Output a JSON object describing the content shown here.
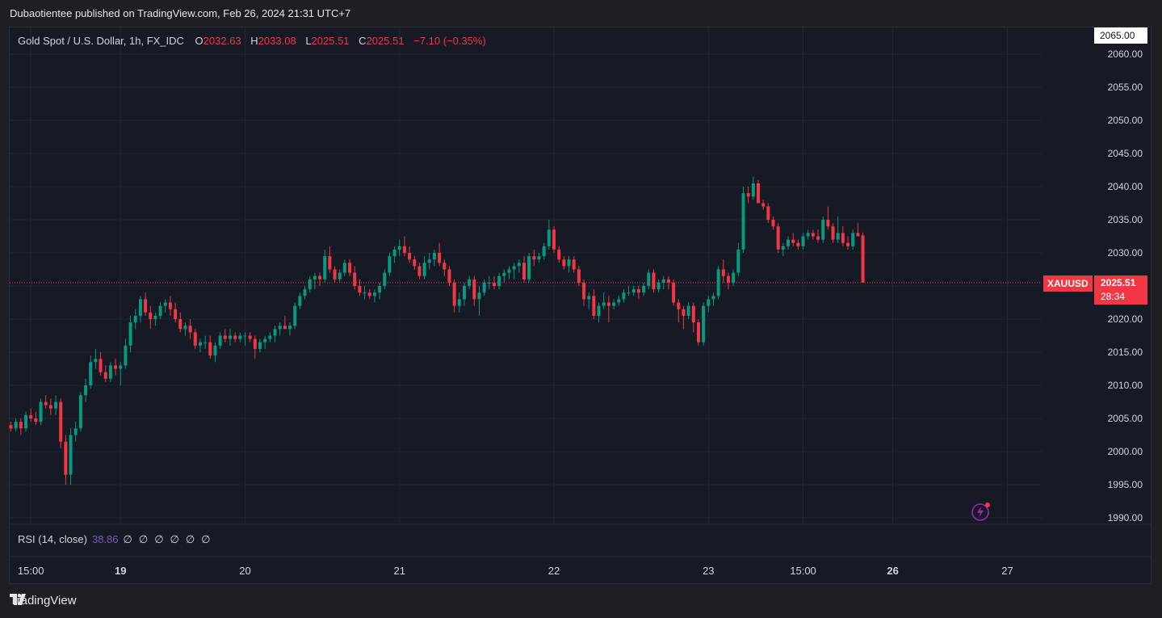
{
  "header": {
    "published": "Dubaotientee published on TradingView.com, Feb 26, 2024 21:31 UTC+7"
  },
  "legend": {
    "symbol": "Gold Spot / U.S. Dollar, 1h, FX_IDC",
    "o_label": "O",
    "o": "2032.63",
    "h_label": "H",
    "h": "2033.08",
    "l_label": "L",
    "l": "2025.51",
    "c_label": "C",
    "c": "2025.51",
    "change": "−7.10 (−0.35%)"
  },
  "price_label": {
    "ticker": "XAUUSD",
    "price": "2025.51",
    "countdown": "28:34",
    "top": "2065.00"
  },
  "rsi": {
    "label": "RSI (14, close)",
    "value": "38.86",
    "placeholders": [
      "∅",
      "∅",
      "∅",
      "∅",
      "∅",
      "∅"
    ]
  },
  "footer": {
    "brand": "TradingView"
  },
  "colors": {
    "up": "#089981",
    "down": "#f23645",
    "bg": "#161a25",
    "grid": "#232733",
    "text": "#d1d4dc"
  },
  "chart_data": {
    "type": "candlestick",
    "ylim": [
      1990,
      2065
    ],
    "y_ticks": [
      "2060.00",
      "2055.00",
      "2050.00",
      "2045.00",
      "2040.00",
      "2035.00",
      "2030.00",
      "2025.00",
      "2020.00",
      "2015.00",
      "2010.00",
      "2005.00",
      "2000.00",
      "1995.00",
      "1990.00"
    ],
    "x_ticks": [
      {
        "label": "15:00",
        "bold": false,
        "bar": 4
      },
      {
        "label": "19",
        "bold": true,
        "bar": 22
      },
      {
        "label": "20",
        "bold": false,
        "bar": 47
      },
      {
        "label": "21",
        "bold": false,
        "bar": 78
      },
      {
        "label": "22",
        "bold": false,
        "bar": 109
      },
      {
        "label": "23",
        "bold": false,
        "bar": 140
      },
      {
        "label": "15:00",
        "bold": false,
        "bar": 159
      },
      {
        "label": "26",
        "bold": true,
        "bar": 177
      },
      {
        "label": "27",
        "bold": false,
        "bar": 200
      }
    ],
    "last_price": 2025.51,
    "candles": [
      [
        2004.0,
        2004.5,
        2003.0,
        2003.5
      ],
      [
        2003.5,
        2005.0,
        2003.0,
        2004.5
      ],
      [
        2004.5,
        2005.0,
        2002.5,
        2003.5
      ],
      [
        2003.5,
        2006.0,
        2003.0,
        2005.5
      ],
      [
        2005.5,
        2006.5,
        2004.5,
        2005.0
      ],
      [
        2005.0,
        2006.0,
        2004.0,
        2004.5
      ],
      [
        2004.5,
        2008.0,
        2004.0,
        2007.5
      ],
      [
        2007.5,
        2008.5,
        2006.5,
        2007.0
      ],
      [
        2007.0,
        2008.0,
        2005.5,
        2006.5
      ],
      [
        2006.5,
        2008.5,
        2005.5,
        2007.5
      ],
      [
        2007.5,
        2008.0,
        2000.5,
        2001.5
      ],
      [
        2001.5,
        2002.5,
        1995.0,
        1996.5
      ],
      [
        1996.5,
        2003.5,
        1995.0,
        2002.5
      ],
      [
        2002.5,
        2004.5,
        2001.5,
        2003.5
      ],
      [
        2003.5,
        2009.0,
        2003.0,
        2008.5
      ],
      [
        2008.5,
        2011.0,
        2007.5,
        2010.0
      ],
      [
        2010.0,
        2014.5,
        2009.5,
        2013.5
      ],
      [
        2013.5,
        2015.5,
        2012.5,
        2014.0
      ],
      [
        2014.0,
        2015.0,
        2011.5,
        2012.0
      ],
      [
        2012.0,
        2013.0,
        2010.5,
        2011.0
      ],
      [
        2011.0,
        2013.5,
        2010.5,
        2013.0
      ],
      [
        2013.0,
        2014.0,
        2011.5,
        2012.5
      ],
      [
        2012.5,
        2013.5,
        2010.0,
        2013.0
      ],
      [
        2013.0,
        2017.0,
        2012.5,
        2016.0
      ],
      [
        2016.0,
        2020.5,
        2015.0,
        2019.5
      ],
      [
        2019.5,
        2021.5,
        2018.5,
        2020.5
      ],
      [
        2020.5,
        2023.5,
        2019.5,
        2023.0
      ],
      [
        2023.0,
        2024.0,
        2020.5,
        2021.0
      ],
      [
        2021.0,
        2022.0,
        2018.5,
        2020.0
      ],
      [
        2020.0,
        2021.0,
        2019.0,
        2020.5
      ],
      [
        2020.5,
        2022.5,
        2020.0,
        2022.0
      ],
      [
        2022.0,
        2023.0,
        2021.0,
        2022.5
      ],
      [
        2022.5,
        2023.5,
        2020.5,
        2021.5
      ],
      [
        2021.5,
        2022.5,
        2019.5,
        2020.0
      ],
      [
        2020.0,
        2021.0,
        2018.0,
        2018.5
      ],
      [
        2018.5,
        2019.5,
        2017.5,
        2019.0
      ],
      [
        2019.0,
        2020.0,
        2017.0,
        2018.0
      ],
      [
        2018.0,
        2018.5,
        2015.5,
        2016.0
      ],
      [
        2016.0,
        2017.0,
        2015.0,
        2016.5
      ],
      [
        2016.5,
        2017.5,
        2015.5,
        2016.5
      ],
      [
        2016.5,
        2017.5,
        2014.0,
        2014.5
      ],
      [
        2014.5,
        2016.5,
        2013.5,
        2016.0
      ],
      [
        2016.0,
        2018.0,
        2015.5,
        2017.5
      ],
      [
        2017.5,
        2018.5,
        2016.5,
        2017.0
      ],
      [
        2017.0,
        2018.5,
        2016.0,
        2017.5
      ],
      [
        2017.5,
        2018.0,
        2016.5,
        2017.0
      ],
      [
        2017.0,
        2018.0,
        2016.5,
        2017.5
      ],
      [
        2017.5,
        2018.0,
        2016.0,
        2017.5
      ],
      [
        2017.5,
        2018.0,
        2016.5,
        2017.0
      ],
      [
        2017.0,
        2017.5,
        2014.0,
        2015.5
      ],
      [
        2015.5,
        2017.0,
        2015.0,
        2016.5
      ],
      [
        2016.5,
        2017.5,
        2015.5,
        2017.0
      ],
      [
        2017.0,
        2018.0,
        2016.5,
        2017.5
      ],
      [
        2017.5,
        2019.0,
        2016.5,
        2018.5
      ],
      [
        2018.5,
        2019.5,
        2017.5,
        2019.0
      ],
      [
        2019.0,
        2020.5,
        2018.5,
        2018.5
      ],
      [
        2018.5,
        2019.5,
        2017.5,
        2019.0
      ],
      [
        2019.0,
        2022.5,
        2018.5,
        2022.0
      ],
      [
        2022.0,
        2024.0,
        2021.5,
        2023.5
      ],
      [
        2023.5,
        2025.0,
        2023.0,
        2024.5
      ],
      [
        2024.5,
        2026.5,
        2024.0,
        2026.0
      ],
      [
        2026.0,
        2027.0,
        2024.5,
        2026.5
      ],
      [
        2026.5,
        2027.0,
        2025.0,
        2026.0
      ],
      [
        2026.0,
        2030.5,
        2025.5,
        2029.5
      ],
      [
        2029.5,
        2031.0,
        2027.0,
        2027.5
      ],
      [
        2027.5,
        2028.0,
        2025.5,
        2026.0
      ],
      [
        2026.0,
        2027.5,
        2025.5,
        2027.0
      ],
      [
        2027.0,
        2029.0,
        2026.5,
        2028.5
      ],
      [
        2028.5,
        2029.0,
        2026.5,
        2027.0
      ],
      [
        2027.0,
        2028.0,
        2024.5,
        2025.0
      ],
      [
        2025.0,
        2026.0,
        2023.5,
        2024.0
      ],
      [
        2024.0,
        2025.0,
        2023.0,
        2024.0
      ],
      [
        2024.0,
        2024.5,
        2023.0,
        2023.5
      ],
      [
        2023.5,
        2024.5,
        2022.5,
        2024.0
      ],
      [
        2024.0,
        2025.5,
        2023.0,
        2025.0
      ],
      [
        2025.0,
        2027.5,
        2024.5,
        2027.0
      ],
      [
        2027.0,
        2030.0,
        2026.5,
        2029.5
      ],
      [
        2029.5,
        2031.0,
        2028.5,
        2030.5
      ],
      [
        2030.5,
        2032.0,
        2029.5,
        2031.0
      ],
      [
        2031.0,
        2032.5,
        2029.5,
        2030.0
      ],
      [
        2030.0,
        2031.0,
        2028.5,
        2029.0
      ],
      [
        2029.0,
        2029.5,
        2027.5,
        2028.0
      ],
      [
        2028.0,
        2028.5,
        2026.0,
        2026.5
      ],
      [
        2026.5,
        2029.5,
        2026.0,
        2028.5
      ],
      [
        2028.5,
        2030.0,
        2027.5,
        2029.0
      ],
      [
        2029.0,
        2030.5,
        2028.0,
        2030.0
      ],
      [
        2030.0,
        2031.5,
        2028.0,
        2028.5
      ],
      [
        2028.5,
        2029.0,
        2026.5,
        2027.5
      ],
      [
        2027.5,
        2028.0,
        2025.0,
        2025.5
      ],
      [
        2025.5,
        2026.0,
        2021.0,
        2022.0
      ],
      [
        2022.0,
        2024.0,
        2021.0,
        2023.0
      ],
      [
        2023.0,
        2025.5,
        2022.0,
        2025.0
      ],
      [
        2025.0,
        2026.5,
        2024.5,
        2026.0
      ],
      [
        2026.0,
        2026.5,
        2022.0,
        2023.0
      ],
      [
        2023.0,
        2025.0,
        2020.5,
        2024.0
      ],
      [
        2024.0,
        2026.0,
        2023.5,
        2025.5
      ],
      [
        2025.5,
        2026.5,
        2024.5,
        2025.5
      ],
      [
        2025.5,
        2026.5,
        2024.5,
        2025.0
      ],
      [
        2025.0,
        2027.0,
        2024.5,
        2026.5
      ],
      [
        2026.5,
        2027.5,
        2025.5,
        2027.0
      ],
      [
        2027.0,
        2028.0,
        2026.0,
        2027.5
      ],
      [
        2027.5,
        2028.5,
        2026.0,
        2028.0
      ],
      [
        2028.0,
        2029.0,
        2027.0,
        2028.5
      ],
      [
        2028.5,
        2029.5,
        2025.5,
        2026.0
      ],
      [
        2026.0,
        2030.0,
        2025.5,
        2029.5
      ],
      [
        2029.5,
        2030.5,
        2028.0,
        2029.0
      ],
      [
        2029.0,
        2030.0,
        2028.5,
        2029.5
      ],
      [
        2029.5,
        2031.5,
        2029.0,
        2031.0
      ],
      [
        2031.0,
        2035.0,
        2030.5,
        2033.5
      ],
      [
        2033.5,
        2034.0,
        2030.0,
        2030.5
      ],
      [
        2030.5,
        2031.0,
        2028.5,
        2029.0
      ],
      [
        2029.0,
        2029.5,
        2027.5,
        2028.0
      ],
      [
        2028.0,
        2029.5,
        2027.0,
        2029.0
      ],
      [
        2029.0,
        2029.5,
        2027.0,
        2027.5
      ],
      [
        2027.5,
        2028.0,
        2025.0,
        2025.5
      ],
      [
        2025.5,
        2026.0,
        2022.0,
        2023.0
      ],
      [
        2023.0,
        2024.0,
        2021.5,
        2023.5
      ],
      [
        2023.5,
        2024.5,
        2020.0,
        2020.5
      ],
      [
        2020.5,
        2022.5,
        2019.5,
        2022.0
      ],
      [
        2022.0,
        2024.0,
        2021.5,
        2022.5
      ],
      [
        2022.5,
        2023.5,
        2019.5,
        2022.0
      ],
      [
        2022.0,
        2023.0,
        2021.5,
        2022.5
      ],
      [
        2022.5,
        2023.5,
        2022.0,
        2023.0
      ],
      [
        2023.0,
        2024.5,
        2022.5,
        2024.0
      ],
      [
        2024.0,
        2025.0,
        2023.5,
        2024.0
      ],
      [
        2024.0,
        2025.0,
        2023.5,
        2024.5
      ],
      [
        2024.5,
        2025.0,
        2023.0,
        2024.0
      ],
      [
        2024.0,
        2025.5,
        2023.5,
        2025.0
      ],
      [
        2025.0,
        2027.5,
        2024.5,
        2027.0
      ],
      [
        2027.0,
        2027.5,
        2024.0,
        2024.5
      ],
      [
        2024.5,
        2026.0,
        2024.0,
        2025.5
      ],
      [
        2025.5,
        2026.5,
        2024.5,
        2026.0
      ],
      [
        2026.0,
        2026.5,
        2024.5,
        2025.5
      ],
      [
        2025.5,
        2026.0,
        2022.0,
        2022.5
      ],
      [
        2022.5,
        2023.0,
        2019.5,
        2021.5
      ],
      [
        2021.5,
        2022.0,
        2018.5,
        2020.5
      ],
      [
        2020.5,
        2022.5,
        2020.0,
        2022.0
      ],
      [
        2022.0,
        2022.5,
        2018.0,
        2019.5
      ],
      [
        2019.5,
        2020.0,
        2016.0,
        2016.5
      ],
      [
        2016.5,
        2022.5,
        2016.0,
        2022.0
      ],
      [
        2022.0,
        2023.5,
        2021.0,
        2023.0
      ],
      [
        2023.0,
        2024.0,
        2022.0,
        2023.5
      ],
      [
        2023.5,
        2028.0,
        2023.0,
        2027.5
      ],
      [
        2027.5,
        2029.0,
        2025.5,
        2026.5
      ],
      [
        2026.5,
        2027.0,
        2024.5,
        2025.5
      ],
      [
        2025.5,
        2027.5,
        2025.0,
        2027.0
      ],
      [
        2027.0,
        2031.5,
        2026.5,
        2030.5
      ],
      [
        2030.5,
        2040.0,
        2030.0,
        2039.0
      ],
      [
        2039.0,
        2040.0,
        2037.5,
        2038.5
      ],
      [
        2038.5,
        2041.5,
        2038.0,
        2040.5
      ],
      [
        2040.5,
        2041.0,
        2037.5,
        2037.5
      ],
      [
        2037.5,
        2038.0,
        2036.5,
        2037.0
      ],
      [
        2037.0,
        2037.5,
        2034.5,
        2035.0
      ],
      [
        2035.0,
        2035.5,
        2033.5,
        2034.0
      ],
      [
        2034.0,
        2034.5,
        2030.0,
        2030.5
      ],
      [
        2030.5,
        2031.5,
        2029.5,
        2031.0
      ],
      [
        2031.0,
        2032.5,
        2030.5,
        2032.0
      ],
      [
        2032.0,
        2033.0,
        2031.0,
        2031.5
      ],
      [
        2031.5,
        2032.0,
        2030.5,
        2031.0
      ],
      [
        2031.0,
        2033.0,
        2030.5,
        2032.5
      ],
      [
        2032.5,
        2033.5,
        2032.0,
        2033.0
      ],
      [
        2033.0,
        2033.5,
        2032.0,
        2032.5
      ],
      [
        2032.5,
        2033.5,
        2031.5,
        2032.0
      ],
      [
        2032.0,
        2035.5,
        2031.5,
        2035.0
      ],
      [
        2035.0,
        2037.0,
        2033.5,
        2034.0
      ],
      [
        2034.0,
        2034.5,
        2031.5,
        2032.0
      ],
      [
        2032.0,
        2035.5,
        2031.5,
        2033.0
      ],
      [
        2033.0,
        2034.0,
        2031.0,
        2031.5
      ],
      [
        2031.5,
        2032.5,
        2030.5,
        2031.0
      ],
      [
        2031.0,
        2033.5,
        2030.5,
        2033.0
      ],
      [
        2033.0,
        2034.5,
        2032.5,
        2032.5
      ],
      [
        2032.63,
        2033.08,
        2025.51,
        2025.51
      ]
    ]
  }
}
